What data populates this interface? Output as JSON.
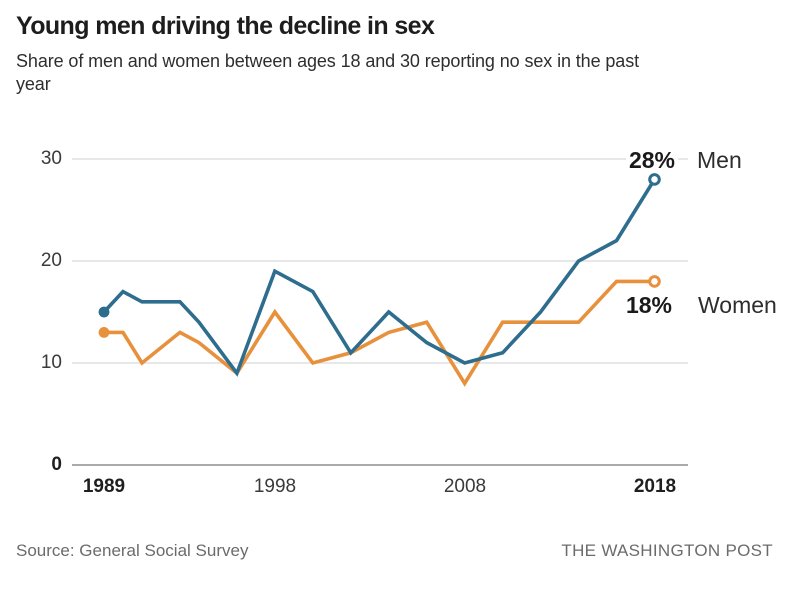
{
  "header": {
    "title": "Young men driving the decline in sex",
    "subtitle": "Share of men and women between ages 18 and 30 reporting no sex in the past year"
  },
  "footer": {
    "source": "Source: General Social Survey",
    "credit": "THE WASHINGTON POST"
  },
  "chart_data": {
    "type": "line",
    "title": "Young men driving the decline in sex",
    "subtitle": "Share of men and women between ages 18 and 30 reporting no sex in the past year",
    "x": [
      1989,
      1990,
      1991,
      1993,
      1994,
      1996,
      1998,
      2000,
      2002,
      2004,
      2006,
      2008,
      2010,
      2012,
      2014,
      2016,
      2018
    ],
    "series": [
      {
        "name": "Men",
        "end_label": "28%",
        "color": "#2e6d8e",
        "values": [
          15,
          17,
          16,
          16,
          14,
          9,
          19,
          17,
          11,
          15,
          12,
          10,
          11,
          15,
          20,
          22,
          28
        ]
      },
      {
        "name": "Women",
        "end_label": "18%",
        "color": "#e8913c",
        "values": [
          13,
          13,
          10,
          13,
          12,
          9,
          15,
          10,
          11,
          13,
          14,
          8,
          14,
          14,
          14,
          18,
          18
        ]
      }
    ],
    "xlabel": "",
    "ylabel": "",
    "xlim": [
      1989,
      2018
    ],
    "ylim": [
      0,
      30
    ],
    "xtick_labels": [
      "1989",
      "1998",
      "2008",
      "2018"
    ],
    "ytick_labels": [
      "30",
      "20",
      "10",
      "0"
    ],
    "yticks": [
      30,
      20,
      10,
      0
    ],
    "grid": "horizontal",
    "legend_position": "end-of-line",
    "start_marker": "filled-dot",
    "end_marker": "open-circle",
    "grid_color": "#d9d9d9",
    "baseline_color": "#8e8e8e"
  }
}
